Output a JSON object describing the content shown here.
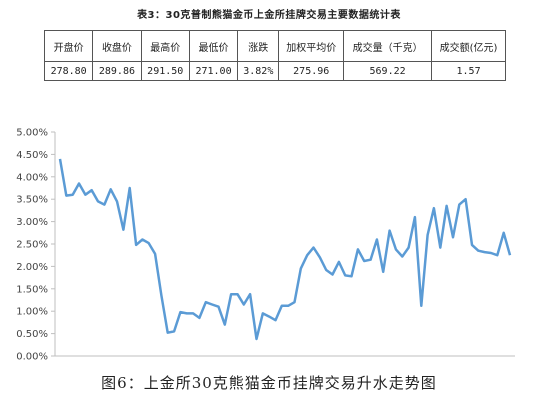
{
  "table": {
    "caption": "表3：30克普制熊猫金币上金所挂牌交易主要数据统计表",
    "headers": [
      "开盘价",
      "收盘价",
      "最高价",
      "最低价",
      "涨跌",
      "加权平均价",
      "成交量（千克）",
      "成交额(亿元)"
    ],
    "row": [
      "278.80",
      "289.86",
      "291.50",
      "271.00",
      "3.82%",
      "275.96",
      "569.22",
      "1.57"
    ]
  },
  "figure_caption": "图6：上金所30克熊猫金币挂牌交易升水走势图",
  "colors": {
    "line": "#5b9bd5",
    "grid": "#d9d9d9",
    "axis": "#bfbfbf"
  },
  "chart_data": {
    "type": "line",
    "title": "",
    "xlabel": "",
    "ylabel": "",
    "ylim": [
      0,
      5.0
    ],
    "y_tick_labels": [
      "0.00%",
      "0.50%",
      "1.00%",
      "1.50%",
      "2.00%",
      "2.50%",
      "3.00%",
      "3.50%",
      "4.00%",
      "4.50%",
      "5.00%"
    ],
    "grid": false,
    "series": [
      {
        "values": [
          4.4,
          3.58,
          3.6,
          3.85,
          3.6,
          3.7,
          3.45,
          3.38,
          3.72,
          3.45,
          2.82,
          3.75,
          2.48,
          2.6,
          2.52,
          2.28,
          1.35,
          0.52,
          0.55,
          0.98,
          0.95,
          0.95,
          0.85,
          1.2,
          1.15,
          1.1,
          0.7,
          1.38,
          1.38,
          1.15,
          1.38,
          0.38,
          0.95,
          0.88,
          0.8,
          1.12,
          1.12,
          1.2,
          1.95,
          2.25,
          2.42,
          2.2,
          1.92,
          1.82,
          2.1,
          1.8,
          1.78,
          2.38,
          2.12,
          2.15,
          2.6,
          1.88,
          2.8,
          2.38,
          2.22,
          2.42,
          3.1,
          1.12,
          2.7,
          3.3,
          2.42,
          3.35,
          2.65,
          3.38,
          3.5,
          2.48,
          2.35,
          2.32,
          2.3,
          2.25,
          2.75,
          2.25
        ]
      }
    ]
  }
}
